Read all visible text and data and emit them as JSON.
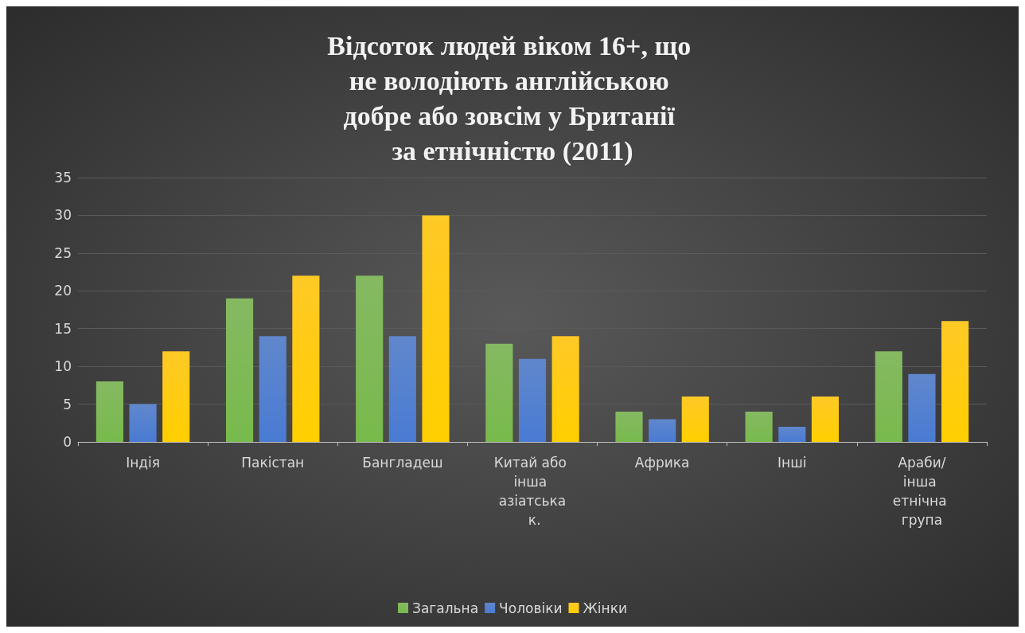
{
  "chart_data": {
    "type": "bar",
    "title": "Відсоток людей віком 16+, що не володіють англійською добре або зовсім у Британії за етнічністю (2011)",
    "categories": [
      "Індія",
      "Пакістан",
      "Бангладеш",
      "Китай або інша азіатська к.",
      "Африка",
      "Інші",
      "Араби/інша етнічна група"
    ],
    "series": [
      {
        "name": "Загальна",
        "color": "#70ad47",
        "values": [
          8,
          19,
          22,
          13,
          4,
          4,
          12
        ]
      },
      {
        "name": "Чоловіки",
        "color": "#4472c4",
        "values": [
          5,
          14,
          14,
          11,
          3,
          2,
          9
        ]
      },
      {
        "name": "Жінки",
        "color": "#ffc000",
        "values": [
          12,
          22,
          30,
          14,
          6,
          6,
          16
        ]
      }
    ],
    "ylim": [
      0,
      35
    ],
    "yticks": [
      0,
      5,
      10,
      15,
      20,
      25,
      30,
      35
    ],
    "grid": "y",
    "legend": "bottom"
  }
}
